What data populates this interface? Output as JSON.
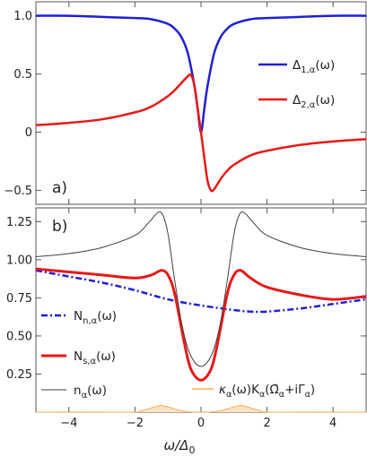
{
  "chart_data": [
    {
      "panel": "a)",
      "type": "line",
      "xlim": [
        -5,
        5
      ],
      "ylim": [
        -0.62,
        1.12
      ],
      "yticks": [
        "1.0",
        "0.5",
        "0",
        "-0.5"
      ],
      "grid": false,
      "legend_position": "right",
      "series": [
        {
          "name": "Δ1,α(ω)",
          "color": "#1f1fd6",
          "x": [
            -5,
            -4,
            -3,
            -2,
            -1.5,
            -1,
            -0.8,
            -0.6,
            -0.4,
            -0.2,
            -0.1,
            0,
            0.1,
            0.2,
            0.4,
            0.6,
            0.8,
            1,
            1.5,
            2,
            3,
            4,
            5
          ],
          "y": [
            1.0,
            1.0,
            0.99,
            0.98,
            0.97,
            0.93,
            0.89,
            0.82,
            0.68,
            0.4,
            0.2,
            0.0,
            0.2,
            0.4,
            0.68,
            0.82,
            0.89,
            0.93,
            0.97,
            0.98,
            0.99,
            1.0,
            1.0
          ]
        },
        {
          "name": "Δ2,α(ω)",
          "color": "#e81818",
          "x": [
            -5,
            -4,
            -3,
            -2,
            -1.5,
            -1,
            -0.8,
            -0.6,
            -0.4,
            -0.3,
            -0.2,
            -0.1,
            0,
            0.1,
            0.2,
            0.3,
            0.4,
            0.6,
            0.8,
            1,
            1.5,
            2,
            3,
            4,
            5
          ],
          "y": [
            0.06,
            0.08,
            0.11,
            0.17,
            0.22,
            0.31,
            0.36,
            0.42,
            0.48,
            0.49,
            0.4,
            0.2,
            0.0,
            -0.22,
            -0.42,
            -0.5,
            -0.49,
            -0.4,
            -0.33,
            -0.28,
            -0.2,
            -0.16,
            -0.11,
            -0.08,
            -0.06
          ]
        }
      ]
    },
    {
      "panel": "b)",
      "type": "line",
      "xlim": [
        -5,
        5
      ],
      "ylim": [
        0,
        1.34
      ],
      "yticks": [
        "1.25",
        "1.00",
        "0.75",
        "0.50",
        "0.25"
      ],
      "xticks": [
        "-4",
        "-2",
        "0",
        "2",
        "4"
      ],
      "xlabel": "ω/Δ0",
      "grid": false,
      "legend_position": "left",
      "series": [
        {
          "name": "Nn,α(ω)",
          "style": "dash-dot",
          "color": "#1f1fd6",
          "x": [
            -5,
            -4,
            -3,
            -2,
            -1,
            0,
            1,
            1.5,
            2,
            3,
            4,
            5
          ],
          "y": [
            0.93,
            0.89,
            0.85,
            0.8,
            0.74,
            0.7,
            0.67,
            0.66,
            0.66,
            0.68,
            0.71,
            0.74
          ]
        },
        {
          "name": "Ns,α(ω)",
          "color": "#e81818",
          "x": [
            -5,
            -4,
            -3,
            -2,
            -1.5,
            -1.2,
            -1,
            -0.8,
            -0.5,
            -0.3,
            0,
            0.3,
            0.5,
            0.8,
            1,
            1.2,
            1.5,
            2,
            3,
            4,
            5
          ],
          "y": [
            0.94,
            0.92,
            0.9,
            0.88,
            0.9,
            0.93,
            0.9,
            0.78,
            0.45,
            0.28,
            0.21,
            0.28,
            0.45,
            0.78,
            0.9,
            0.93,
            0.88,
            0.82,
            0.77,
            0.74,
            0.76
          ]
        },
        {
          "name": "nα(ω)",
          "color": "#404040",
          "x": [
            -5,
            -4,
            -3,
            -2,
            -1.6,
            -1.3,
            -1.15,
            -1,
            -0.8,
            -0.6,
            -0.4,
            -0.2,
            0,
            0.2,
            0.4,
            0.6,
            0.8,
            1,
            1.15,
            1.3,
            1.6,
            2,
            3,
            4,
            5
          ],
          "y": [
            1.02,
            1.04,
            1.08,
            1.16,
            1.24,
            1.31,
            1.29,
            1.17,
            0.87,
            0.6,
            0.42,
            0.33,
            0.3,
            0.33,
            0.42,
            0.6,
            0.87,
            1.17,
            1.29,
            1.31,
            1.24,
            1.16,
            1.08,
            1.04,
            1.02
          ]
        },
        {
          "name": "κα(ω)Kα(Ω̃α+iΓ̄α)",
          "color": "#f3b25a",
          "fill": "#fbe2bf",
          "x": [
            -5,
            -2.2,
            -1.8,
            -1.4,
            -1.2,
            -1.0,
            -0.6,
            -0.2,
            0,
            0.2,
            0.6,
            1.0,
            1.2,
            1.4,
            1.8,
            2.2,
            5
          ],
          "y": [
            0,
            0,
            0.01,
            0.035,
            0.045,
            0.035,
            0.01,
            0.0,
            0.0,
            0.0,
            0.01,
            0.035,
            0.045,
            0.035,
            0.01,
            0,
            0
          ]
        }
      ]
    }
  ],
  "legend": {
    "a": [
      {
        "label_main": "Δ",
        "label_sub": "1,α",
        "label_tail": "(ω)"
      },
      {
        "label_main": "Δ",
        "label_sub": "2,α",
        "label_tail": "(ω)"
      }
    ],
    "b": [
      {
        "label_main": "N",
        "label_sub": "n,α",
        "label_tail": "(ω)"
      },
      {
        "label_main": "N",
        "label_sub": "s,α",
        "label_tail": "(ω)"
      },
      {
        "label_main": "n",
        "label_sub": "α",
        "label_tail": "(ω)"
      },
      {
        "label_main": "κ",
        "label_sub": "α",
        "label_tail": "(ω)K",
        "label_sub2": "α",
        "label_tail2": "(Ω̃",
        "label_sub3": "α",
        "label_tail3": "+iΓ̄",
        "label_sub4": "α",
        "label_tail4": ")"
      }
    ]
  },
  "axis": {
    "xlabel_main": "ω/Δ",
    "xlabel_sub": "0"
  }
}
